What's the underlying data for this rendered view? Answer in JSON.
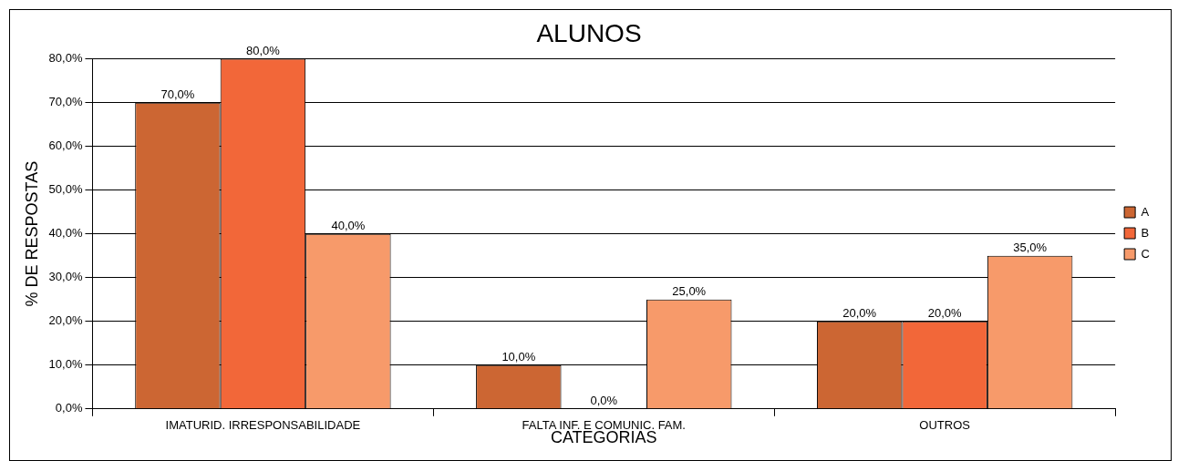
{
  "chart_data": {
    "type": "bar",
    "title": "ALUNOS",
    "xlabel": "CATEGORIAS",
    "ylabel": "% DE RESPOSTAS",
    "categories": [
      "IMATURID. IRRESPONSABILIDADE",
      "FALTA INF. E COMUNIC. FAM.",
      "OUTROS"
    ],
    "series": [
      {
        "name": "A",
        "color": "#cc6633",
        "values": [
          70,
          10,
          20
        ],
        "value_labels": [
          "70,0%",
          "10,0%",
          "20,0%"
        ]
      },
      {
        "name": "B",
        "color": "#f26739",
        "values": [
          80,
          0,
          20
        ],
        "value_labels": [
          "80,0%",
          "0,0%",
          "20,0%"
        ]
      },
      {
        "name": "C",
        "color": "#f79a6a",
        "values": [
          40,
          25,
          35
        ],
        "value_labels": [
          "40,0%",
          "25,0%",
          "35,0%"
        ]
      }
    ],
    "ylim": [
      0,
      80
    ],
    "yticks": [
      {
        "value": 0,
        "label": "0,0%"
      },
      {
        "value": 10,
        "label": "10,0%"
      },
      {
        "value": 20,
        "label": "20,0%"
      },
      {
        "value": 30,
        "label": "30,0%"
      },
      {
        "value": 40,
        "label": "40,0%"
      },
      {
        "value": 50,
        "label": "50,0%"
      },
      {
        "value": 60,
        "label": "60,0%"
      },
      {
        "value": 70,
        "label": "70,0%"
      },
      {
        "value": 80,
        "label": "80,0%"
      }
    ],
    "grid": "y",
    "legend": "right"
  }
}
